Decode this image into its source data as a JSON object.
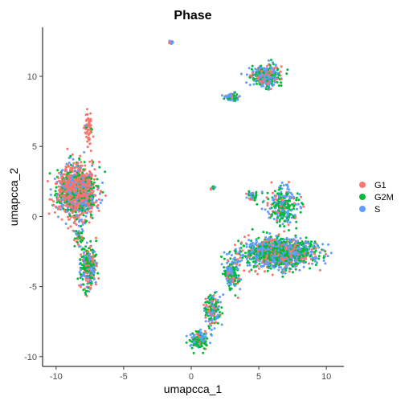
{
  "chart_data": {
    "type": "scatter",
    "title": "Phase",
    "xlabel": "umapcca_1",
    "ylabel": "umapcca_2",
    "xlim": [
      -11,
      11.3
    ],
    "ylim": [
      -10.7,
      13.5
    ],
    "x_ticks": [
      -10,
      -5,
      0,
      5,
      10
    ],
    "y_ticks": [
      -10,
      -5,
      0,
      5,
      10
    ],
    "x_tick_labels": [
      "-10",
      "-5",
      "0",
      "5",
      "10"
    ],
    "y_tick_labels": [
      "-10",
      "-5",
      "0",
      "5",
      "10"
    ],
    "grid": false,
    "legend_position": "right",
    "point_size": 1.5,
    "series": [
      {
        "name": "G1",
        "color": "#F8766D"
      },
      {
        "name": "G2M",
        "color": "#00BA38"
      },
      {
        "name": "S",
        "color": "#619CFF"
      }
    ],
    "clusters": [
      {
        "center": [
          -8.5,
          1.8
        ],
        "spread": [
          1.1,
          1.4
        ],
        "mix": [
          0.55,
          0.25,
          0.2
        ],
        "count": 1400
      },
      {
        "center": [
          -7.6,
          -3.6
        ],
        "spread": [
          0.5,
          1.2
        ],
        "mix": [
          0.35,
          0.35,
          0.3
        ],
        "count": 300
      },
      {
        "center": [
          -7.6,
          6.3
        ],
        "spread": [
          0.25,
          1.0
        ],
        "mix": [
          0.9,
          0.05,
          0.05
        ],
        "count": 70
      },
      {
        "center": [
          -1.5,
          12.4
        ],
        "spread": [
          0.12,
          0.1
        ],
        "mix": [
          0.3,
          0.3,
          0.4
        ],
        "count": 15
      },
      {
        "center": [
          5.5,
          10.0
        ],
        "spread": [
          0.9,
          0.6
        ],
        "mix": [
          0.2,
          0.4,
          0.4
        ],
        "count": 350
      },
      {
        "center": [
          3.0,
          8.5
        ],
        "spread": [
          0.4,
          0.25
        ],
        "mix": [
          0.2,
          0.4,
          0.4
        ],
        "count": 70
      },
      {
        "center": [
          6.5,
          -2.6
        ],
        "spread": [
          2.1,
          0.8
        ],
        "mix": [
          0.2,
          0.4,
          0.4
        ],
        "count": 1300
      },
      {
        "center": [
          6.8,
          0.8
        ],
        "spread": [
          0.9,
          1.1
        ],
        "mix": [
          0.15,
          0.45,
          0.4
        ],
        "count": 300
      },
      {
        "center": [
          3.0,
          -4.0
        ],
        "spread": [
          0.5,
          0.9
        ],
        "mix": [
          0.2,
          0.4,
          0.4
        ],
        "count": 180
      },
      {
        "center": [
          1.6,
          -6.6
        ],
        "spread": [
          0.45,
          0.9
        ],
        "mix": [
          0.25,
          0.4,
          0.35
        ],
        "count": 160
      },
      {
        "center": [
          0.6,
          -8.8
        ],
        "spread": [
          0.5,
          0.5
        ],
        "mix": [
          0.25,
          0.4,
          0.35
        ],
        "count": 160
      },
      {
        "center": [
          4.5,
          1.4
        ],
        "spread": [
          0.35,
          0.3
        ],
        "mix": [
          0.2,
          0.4,
          0.4
        ],
        "count": 40
      },
      {
        "center": [
          1.6,
          2.0
        ],
        "spread": [
          0.15,
          0.15
        ],
        "mix": [
          0.2,
          0.4,
          0.4
        ],
        "count": 10
      },
      {
        "center": [
          -8.3,
          -1.4
        ],
        "spread": [
          0.3,
          0.8
        ],
        "mix": [
          0.3,
          0.4,
          0.3
        ],
        "count": 50
      }
    ]
  }
}
